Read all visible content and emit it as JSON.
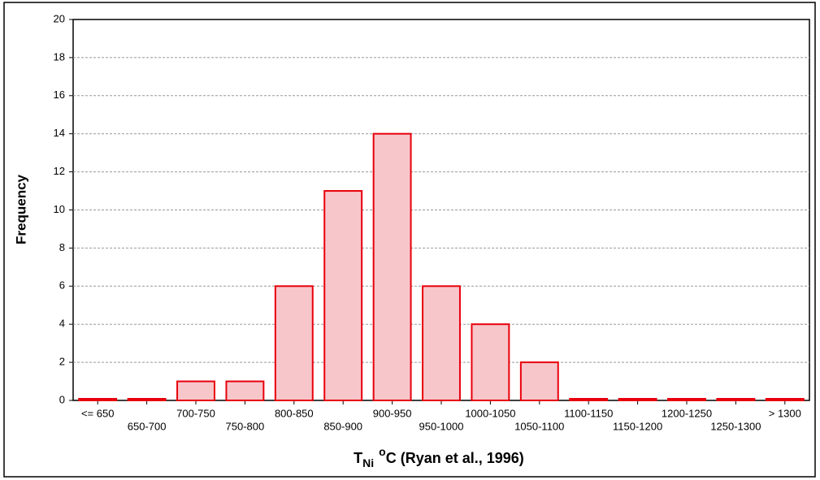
{
  "chart_data": {
    "type": "bar",
    "ylabel": "Frequency",
    "xlabel": [
      "T",
      "Ni",
      "o",
      "C (Ryan et al., 1996)"
    ],
    "categories": [
      "<= 650",
      "650-700",
      "700-750",
      "750-800",
      "800-850",
      "850-900",
      "900-950",
      "950-1000",
      "1000-1050",
      "1050-1100",
      "1100-1150",
      "1150-1200",
      "1200-1250",
      "1250-1300",
      "> 1300"
    ],
    "values": [
      0,
      0,
      1,
      1,
      6,
      11,
      14,
      6,
      4,
      2,
      0,
      0,
      0,
      0,
      0
    ],
    "color": "#f7c6cb",
    "edgecolor": "#e8000b",
    "ylim": [
      0,
      20
    ],
    "yticks": [
      0,
      2,
      4,
      6,
      8,
      10,
      12,
      14,
      16,
      18,
      20
    ],
    "grid": true
  }
}
